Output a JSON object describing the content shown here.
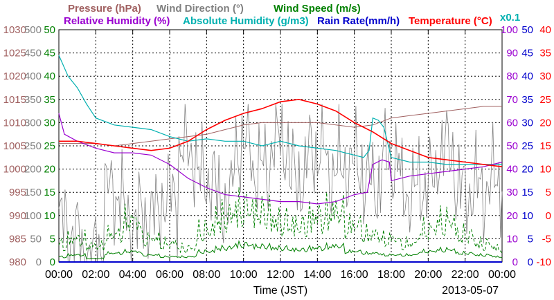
{
  "chart_data": {
    "type": "line",
    "date": "2013-05-07",
    "xlabel": "Time (JST)",
    "x_ticks": [
      "00:00",
      "02:00",
      "04:00",
      "06:00",
      "08:00",
      "10:00",
      "12:00",
      "14:00",
      "16:00",
      "18:00",
      "20:00",
      "22:00",
      "00:00"
    ],
    "legend": [
      {
        "key": "pressure",
        "text": "Pressure (hPa)",
        "color": "#a06060"
      },
      {
        "key": "wind_dir",
        "text": "Wind Direction (°)",
        "color": "#808080"
      },
      {
        "key": "wind_speed",
        "text": "Wind Speed (m/s)",
        "color": "#008000"
      },
      {
        "key": "rh",
        "text": "Relative Humidity (%)",
        "color": "#9a00d0"
      },
      {
        "key": "ah",
        "text": "Absolute Humidity (g/m3)",
        "color": "#00b0b0"
      },
      {
        "key": "rain",
        "text": "Rain Rate(mm/h)",
        "color": "#0000cc"
      },
      {
        "key": "temp",
        "text": "Temperature (°C)",
        "color": "#ff0000"
      }
    ],
    "ah_scale_note": "x0.1",
    "axes": {
      "pressure": {
        "label": "Pressure (hPa)",
        "ticks": [
          "1030",
          "1025",
          "1020",
          "1015",
          "1010",
          "1005",
          "1000",
          "995",
          "990",
          "985",
          "980"
        ],
        "range": [
          980,
          1030
        ]
      },
      "wind_dir": {
        "label": "Wind Direction (°)",
        "ticks": [
          "500",
          "450",
          "400",
          "350",
          "300",
          "250",
          "200",
          "150",
          "100",
          "50",
          "0"
        ],
        "range": [
          0,
          500
        ]
      },
      "wind_speed": {
        "label": "Wind Speed (m/s)",
        "ticks": [
          "50",
          "45",
          "40",
          "35",
          "30",
          "25",
          "20",
          "15",
          "10",
          "5",
          "0"
        ],
        "range": [
          0,
          50
        ]
      },
      "rh": {
        "label": "Relative Humidity (%)",
        "ticks": [
          "100",
          "90",
          "80",
          "70",
          "60",
          "50",
          "40",
          "30",
          "20",
          "10",
          "0"
        ],
        "range": [
          0,
          100
        ]
      },
      "rain": {
        "label": "Rain Rate(mm/h)",
        "ticks": [
          "50",
          "45",
          "40",
          "35",
          "30",
          "25",
          "20",
          "15",
          "10",
          "5",
          "0"
        ],
        "range": [
          0,
          50
        ]
      },
      "temp": {
        "label": "Temperature (°C)",
        "ticks": [
          "40",
          "35",
          "30",
          "25",
          "20",
          "15",
          "10",
          "5",
          "0",
          "-5",
          "-10"
        ],
        "range": [
          -10,
          40
        ]
      }
    },
    "series": [
      {
        "name": "Pressure (hPa)",
        "key": "pressure",
        "x": [
          0,
          2,
          3,
          4,
          5,
          6,
          7,
          8,
          9,
          10,
          11,
          12,
          13,
          14,
          15,
          16,
          17,
          18,
          19,
          20,
          21,
          22,
          23,
          24
        ],
        "values": [
          1005.5,
          1005.5,
          1005,
          1005.5,
          1006,
          1006.5,
          1007,
          1007.5,
          1008.5,
          1009.5,
          1010,
          1010,
          1010,
          1010,
          1009.5,
          1009,
          1009.5,
          1011,
          1011.5,
          1012,
          1012.5,
          1013,
          1013.5,
          1013.5
        ]
      },
      {
        "name": "Temperature (°C)",
        "key": "temp",
        "x": [
          0,
          1,
          2,
          3,
          4,
          5,
          6,
          7,
          8,
          9,
          10,
          11,
          12,
          13,
          14,
          15,
          16,
          17,
          18,
          19,
          20,
          21,
          22,
          23,
          24
        ],
        "values": [
          16,
          16,
          15.5,
          15,
          14.5,
          14,
          14.5,
          16,
          18.5,
          20.5,
          22,
          23,
          24.5,
          25,
          24,
          22.5,
          20,
          18,
          15.5,
          14,
          12.5,
          12,
          11.5,
          11,
          10.5
        ]
      },
      {
        "name": "Relative Humidity (%)",
        "key": "rh",
        "x": [
          0,
          0.3,
          1,
          2,
          3,
          4,
          5,
          6,
          7,
          8,
          9,
          10,
          11,
          12,
          13,
          14,
          15,
          16,
          16.7,
          17,
          17.5,
          17.9,
          18,
          19,
          20,
          21,
          22,
          23,
          24
        ],
        "values": [
          64,
          55,
          52,
          49,
          47,
          47,
          46,
          42,
          36,
          32,
          29,
          28,
          27,
          26,
          26,
          25,
          26,
          29,
          30,
          42,
          44,
          43,
          35,
          37,
          38,
          39,
          40,
          41,
          43
        ]
      },
      {
        "name": "Absolute Humidity (g/m3)",
        "key": "ah",
        "x": [
          0,
          0.5,
          1,
          1.5,
          2,
          3,
          4,
          5,
          6,
          7,
          8,
          9,
          10,
          11,
          12,
          13,
          14,
          15,
          16,
          16.5,
          16.8,
          17,
          17.3,
          17.6,
          18,
          19,
          20,
          21,
          22,
          23,
          24
        ],
        "values": [
          89,
          80,
          75,
          68,
          62,
          59,
          58,
          57,
          54,
          52,
          53,
          52,
          52,
          50,
          52,
          50,
          49,
          48,
          46,
          45,
          48,
          62,
          61,
          58,
          45,
          43,
          43,
          42,
          42,
          42,
          42
        ]
      },
      {
        "name": "Rain Rate(mm/h)",
        "key": "rain",
        "x": [
          0,
          24
        ],
        "values": [
          0,
          0
        ]
      }
    ],
    "wind_speed_max_values": [
      4,
      5,
      3.5,
      6,
      9,
      5,
      4,
      3,
      7,
      10,
      12,
      11,
      9,
      8,
      10,
      11,
      8,
      6,
      5,
      4,
      7,
      9,
      6,
      4,
      3
    ],
    "wind_speed_avg_values": [
      1.5,
      2,
      1,
      2.5,
      3,
      2,
      1.5,
      1.5,
      3,
      4,
      5,
      4.5,
      4,
      3.5,
      4,
      4.5,
      3,
      2.5,
      2,
      2,
      3,
      3.5,
      2.5,
      2,
      1.5
    ],
    "wind_dir_values": [
      80,
      60,
      40,
      150,
      90,
      100,
      140,
      240,
      180,
      130,
      250,
      200,
      260,
      180,
      240,
      200,
      210,
      170,
      220,
      150,
      170,
      240,
      150,
      160,
      180
    ]
  }
}
